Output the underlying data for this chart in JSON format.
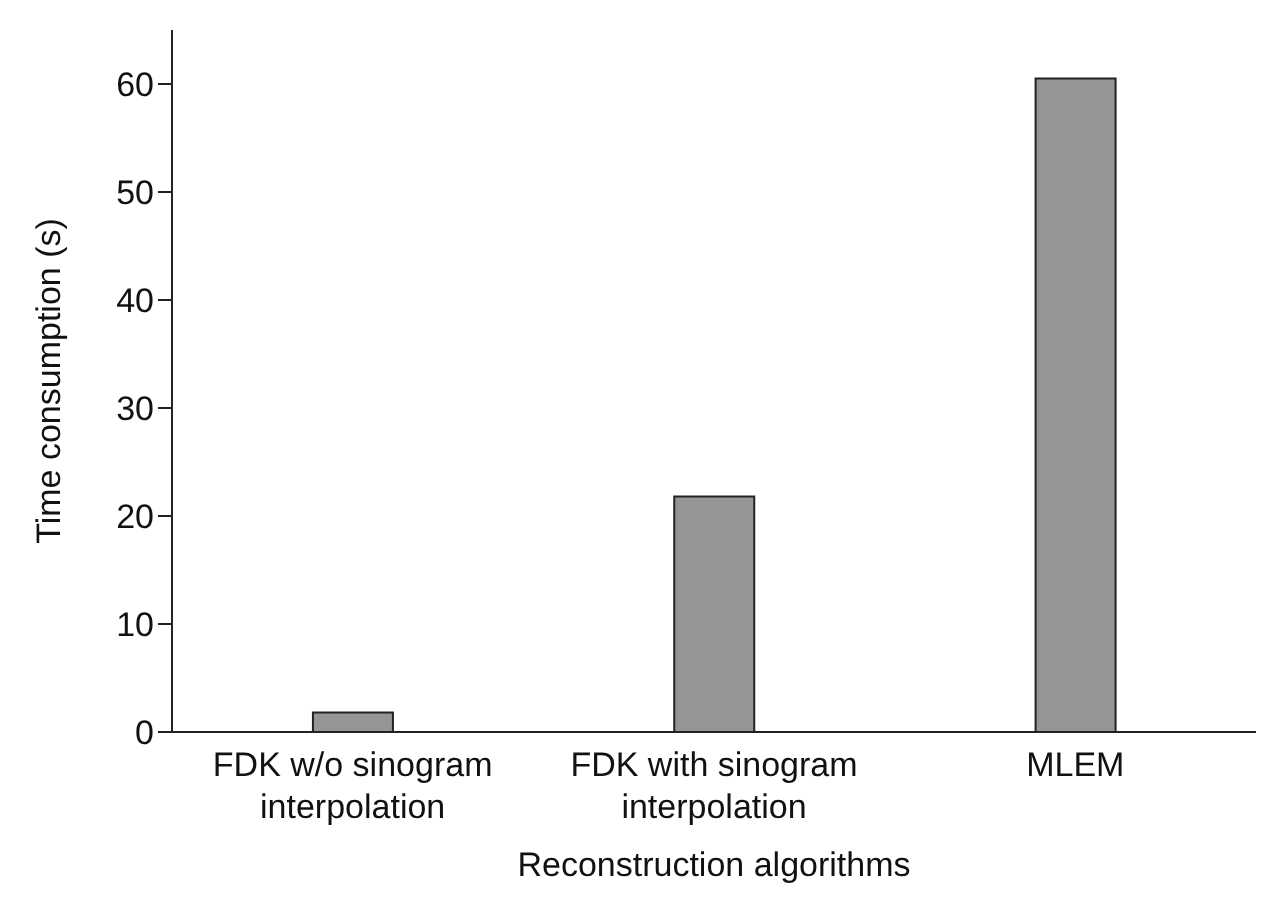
{
  "chart_data": {
    "type": "bar",
    "xlabel": "Reconstruction algorithms",
    "ylabel": "Time consumption (s)",
    "categories": [
      "FDK w/o sinogram interpolation",
      "FDK with sinogram interpolation",
      "MLEM"
    ],
    "values": [
      1.8,
      21.8,
      60.5
    ],
    "color": "#959595",
    "ylim": [
      0,
      65
    ],
    "yticks": [
      0,
      10,
      20,
      30,
      40,
      50,
      60
    ],
    "grid": false,
    "legend": false
  }
}
